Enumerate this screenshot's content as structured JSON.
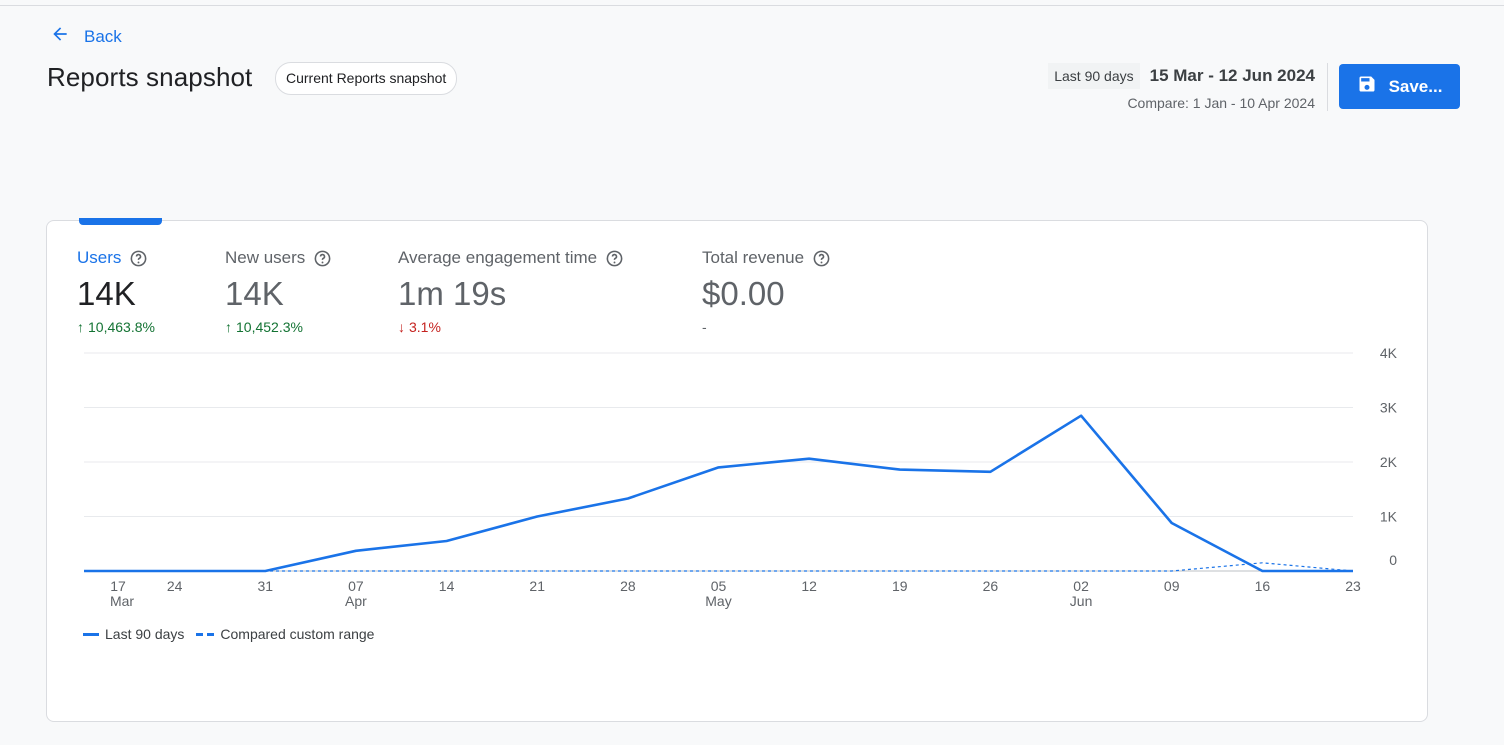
{
  "nav": {
    "back_label": "Back"
  },
  "header": {
    "title": "Reports snapshot",
    "chip_label": "Current Reports snapshot",
    "range_badge": "Last 90 days",
    "date_range": "15 Mar - 12 Jun 2024",
    "compare": "Compare: 1 Jan - 10 Apr 2024",
    "save_label": "Save..."
  },
  "metrics": [
    {
      "label": "Users",
      "value": "14K",
      "change": "10,463.8%",
      "direction": "up",
      "active": true
    },
    {
      "label": "New users",
      "value": "14K",
      "change": "10,452.3%",
      "direction": "up",
      "active": false
    },
    {
      "label": "Average engagement time",
      "value": "1m 19s",
      "change": "3.1%",
      "direction": "down",
      "active": false
    },
    {
      "label": "Total revenue",
      "value": "$0.00",
      "change": "-",
      "direction": "none",
      "active": false
    }
  ],
  "colors": {
    "accent": "#1a73e8",
    "up": "#137333",
    "down": "#c5221f"
  },
  "chart_data": {
    "type": "line",
    "x": [
      "17 Mar",
      "24",
      "31",
      "07 Apr",
      "14",
      "21",
      "28",
      "05 May",
      "12",
      "19",
      "26",
      "02 Jun",
      "09",
      "16",
      "23"
    ],
    "x_ticks": [
      {
        "day": "17",
        "month": "Mar"
      },
      {
        "day": "24",
        "month": ""
      },
      {
        "day": "31",
        "month": ""
      },
      {
        "day": "07",
        "month": "Apr"
      },
      {
        "day": "14",
        "month": ""
      },
      {
        "day": "21",
        "month": ""
      },
      {
        "day": "28",
        "month": ""
      },
      {
        "day": "05",
        "month": "May"
      },
      {
        "day": "12",
        "month": ""
      },
      {
        "day": "19",
        "month": ""
      },
      {
        "day": "26",
        "month": ""
      },
      {
        "day": "02",
        "month": "Jun"
      },
      {
        "day": "09",
        "month": ""
      },
      {
        "day": "16",
        "month": ""
      },
      {
        "day": "23",
        "month": ""
      }
    ],
    "y_ticks": [
      "0",
      "1K",
      "2K",
      "3K",
      "4K"
    ],
    "ylim": [
      0,
      4000
    ],
    "grid": true,
    "legend_position": "bottom-left",
    "series": [
      {
        "name": "Last 90 days",
        "style": "solid",
        "values": [
          0,
          0,
          0,
          370,
          550,
          1000,
          1330,
          1900,
          2060,
          1860,
          1820,
          2850,
          880,
          0,
          0
        ]
      },
      {
        "name": "Compared custom range",
        "style": "dashed",
        "values": [
          0,
          0,
          0,
          0,
          0,
          0,
          0,
          0,
          0,
          0,
          0,
          0,
          0,
          150,
          0
        ]
      }
    ]
  }
}
